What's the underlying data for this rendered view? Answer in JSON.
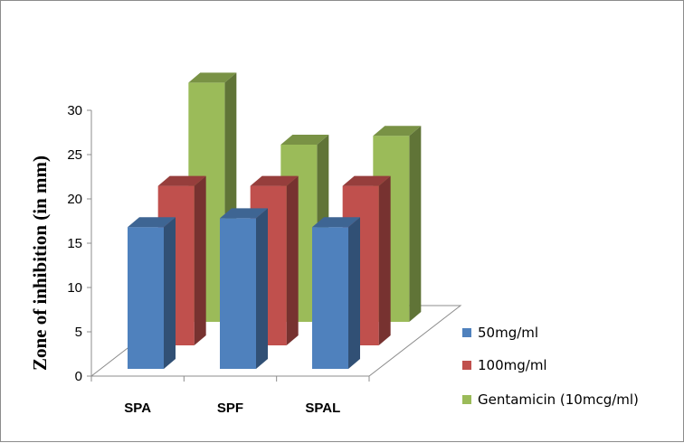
{
  "chart_data": {
    "type": "bar",
    "variant": "3d-clustered-depth",
    "title": "",
    "xlabel": "",
    "ylabel": "Zone of inhibition (in mm)",
    "categories": [
      "SPA",
      "SPF",
      "SPAL"
    ],
    "series": [
      {
        "name": "50mg/ml",
        "values": [
          16,
          17,
          16
        ],
        "color": "#4F81BD"
      },
      {
        "name": "100mg/ml",
        "values": [
          18,
          18,
          18
        ],
        "color": "#C0504D"
      },
      {
        "name": "Gentamicin (10mcg/ml)",
        "values": [
          27,
          20,
          21
        ],
        "color": "#9BBB59"
      }
    ],
    "ylim": [
      0,
      30
    ],
    "yticks": [
      0,
      5,
      10,
      15,
      20,
      25,
      30
    ],
    "grid": false,
    "legend": "right"
  }
}
